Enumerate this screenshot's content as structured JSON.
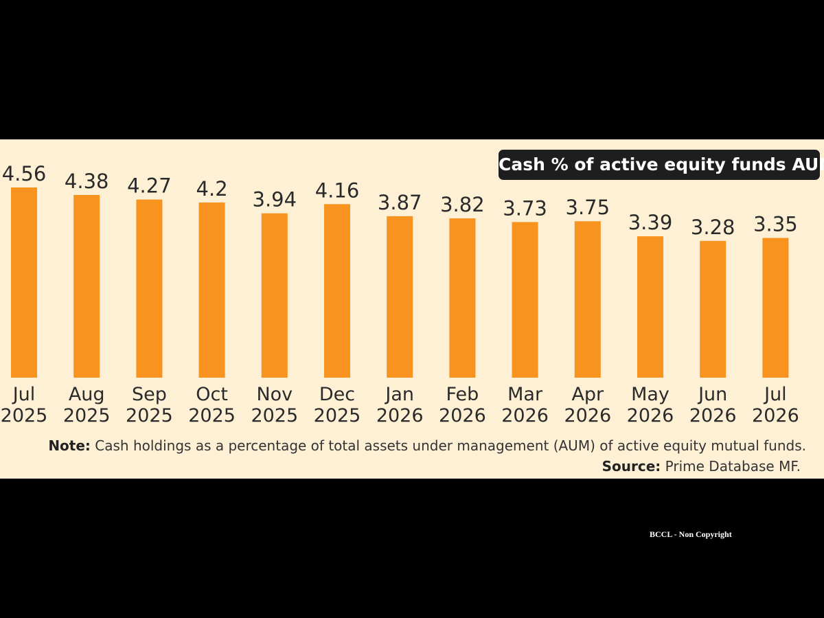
{
  "chart_data": {
    "type": "bar",
    "title": "Cash % of active equity funds AUM",
    "categories": [
      [
        "Jul",
        "2025"
      ],
      [
        "Aug",
        "2025"
      ],
      [
        "Sep",
        "2025"
      ],
      [
        "Oct",
        "2025"
      ],
      [
        "Nov",
        "2025"
      ],
      [
        "Dec",
        "2025"
      ],
      [
        "Jan",
        "2026"
      ],
      [
        "Feb",
        "2026"
      ],
      [
        "Mar",
        "2026"
      ],
      [
        "Apr",
        "2026"
      ],
      [
        "May",
        "2026"
      ],
      [
        "Jun",
        "2026"
      ],
      [
        "Jul",
        "2026"
      ]
    ],
    "values": [
      4.56,
      4.38,
      4.27,
      4.2,
      3.94,
      4.16,
      3.87,
      3.82,
      3.73,
      3.75,
      3.39,
      3.28,
      3.35
    ],
    "value_labels": [
      "4.56",
      "4.38",
      "4.27",
      "4.2",
      "3.94",
      "4.16",
      "3.87",
      "3.82",
      "3.73",
      "3.75",
      "3.39",
      "3.28",
      "3.35"
    ],
    "ylim": [
      0,
      4.56
    ],
    "grid": false,
    "legend": "none",
    "bar_color": "#f7931e"
  },
  "note": {
    "label": "Note:",
    "text": "Cash holdings as a percentage of total assets under management (AUM) of active equity mutual funds."
  },
  "source": {
    "label": "Source:",
    "text": "Prime Database MF."
  },
  "watermark": "BCCL - Non Copyright",
  "colors": {
    "background": "#fdf0d4",
    "frame": "#000000",
    "title_badge": "#1e1e1e"
  }
}
